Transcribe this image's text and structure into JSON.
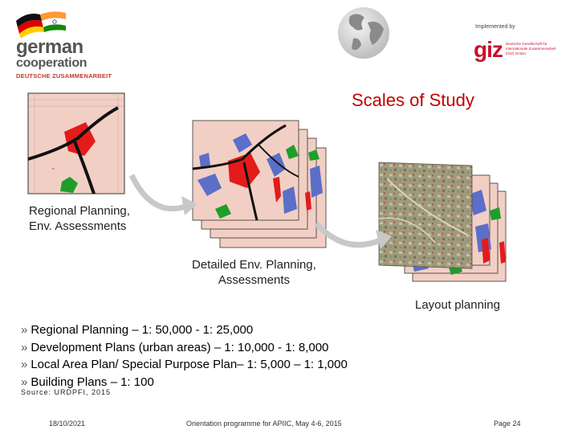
{
  "header": {
    "logo_left": {
      "line1": "german",
      "line2": "cooperation",
      "line3": "DEUTSCHE ZUSAMMENARBEIT"
    },
    "implemented_by": "Implemented by",
    "giz_logo": {
      "word": "giz",
      "subtitle": "Deutsche Gesellschaft für Internationale Zusammenarbeit (GIZ) GmbH"
    }
  },
  "title": "Scales of Study",
  "diagram": {
    "caption_regional_line1": "Regional Planning,",
    "caption_regional_line2": "Env. Assessments",
    "caption_detailed_line1": "Detailed Env. Planning,",
    "caption_detailed_line2": "Assessments",
    "caption_layout": "Layout planning"
  },
  "bullets": [
    "Regional Planning – 1: 50,000 - 1: 25,000",
    "Development Plans (urban areas) – 1: 10,000 - 1: 8,000",
    "Local Area Plan/ Special Purpose Plan– 1: 5,000 – 1: 1,000",
    "Building Plans – 1: 100"
  ],
  "bullet_marker": "»",
  "source": "Source: URDPFI, 2015",
  "footer": {
    "date": "18/10/2021",
    "center": "Orientation programme for APIIC, May 4-6, 2015",
    "page": "Page 24"
  },
  "colors": {
    "title": "#c00000",
    "giz_red": "#c8102e",
    "map_pink": "#f2cfc4",
    "map_red": "#e31b1b",
    "map_blue": "#5b6fc9",
    "map_green": "#1e9e2a"
  }
}
